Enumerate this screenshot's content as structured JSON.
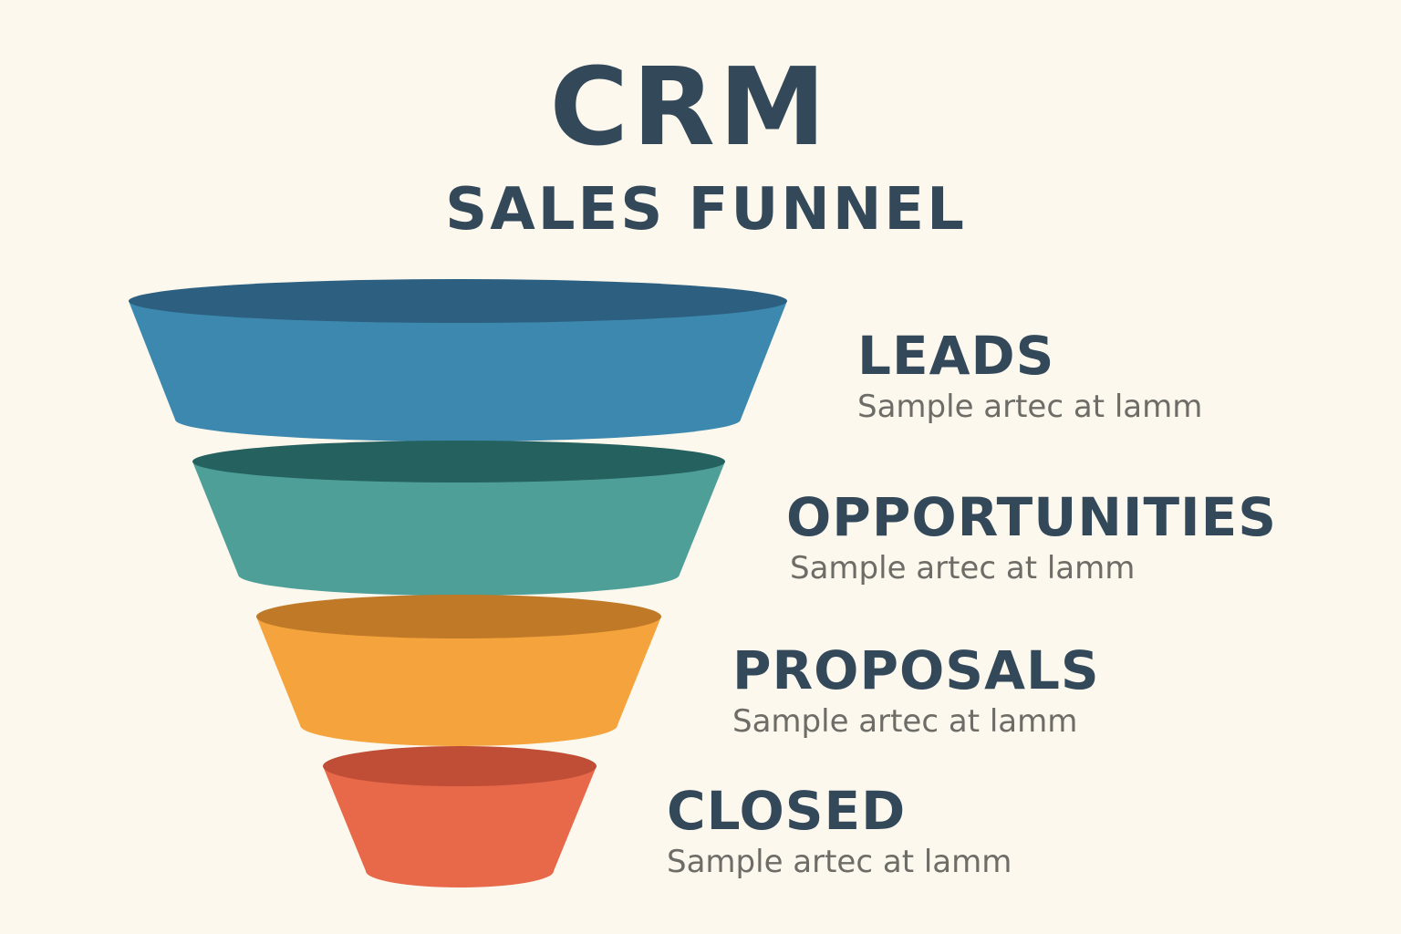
{
  "title": "CRM",
  "subtitle": "SALES FUNNEL",
  "stages": [
    {
      "name": "LEADS",
      "description": "Sample artec at lamm",
      "color": "#3d88ae",
      "top_color": "#2c5f80"
    },
    {
      "name": "OPPORTUNITIES",
      "description": "Sample artec at lamm",
      "color": "#4e9f98",
      "top_color": "#25625f"
    },
    {
      "name": "PROPOSALS",
      "description": "Sample artec at lamm",
      "color": "#f5a33c",
      "top_color": "#c07a27"
    },
    {
      "name": "CLOSED",
      "description": "Sample artec at lamm",
      "color": "#e8684a",
      "top_color": "#c04d35"
    }
  ]
}
